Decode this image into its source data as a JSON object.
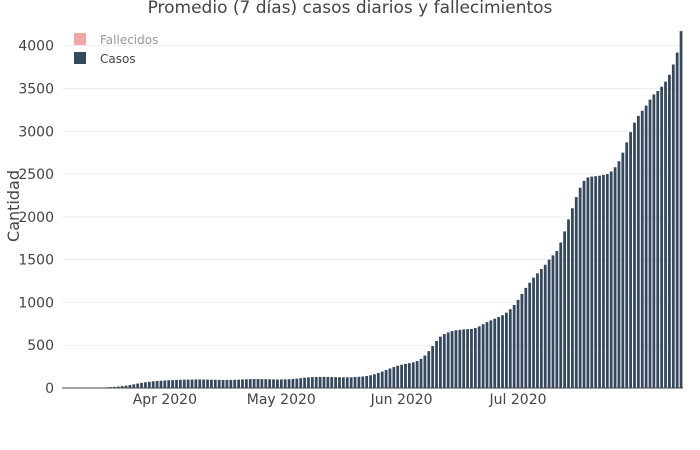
{
  "chart_data": {
    "type": "bar",
    "title": "Promedio (7 días) casos diarios y fallecimientos",
    "xlabel": "",
    "ylabel": "Cantidad",
    "ylim": [
      0,
      4300
    ],
    "yticks": [
      0,
      500,
      1000,
      1500,
      2000,
      2500,
      3000,
      3500,
      4000
    ],
    "grid": true,
    "legend_position": "top-left",
    "x_start": "2020-03-06",
    "xticks": [
      {
        "date": "2020-04-01",
        "label": "Apr 2020"
      },
      {
        "date": "2020-05-01",
        "label": "May 2020"
      },
      {
        "date": "2020-06-01",
        "label": "Jun 2020"
      },
      {
        "date": "2020-07-01",
        "label": "Jul 2020"
      }
    ],
    "series": [
      {
        "name": "Fallecidos",
        "color": "#f2a7a7",
        "legend_text_color": "#999999",
        "values": []
      },
      {
        "name": "Casos",
        "color": "#34495e",
        "legend_text_color": "#444444",
        "values": [
          1,
          1,
          1,
          1,
          2,
          2,
          3,
          3,
          4,
          5,
          6,
          8,
          10,
          13,
          17,
          22,
          28,
          35,
          43,
          52,
          60,
          67,
          73,
          78,
          82,
          85,
          88,
          90,
          92,
          94,
          96,
          97,
          98,
          99,
          100,
          100,
          99,
          98,
          97,
          96,
          95,
          94,
          94,
          95,
          96,
          98,
          100,
          102,
          104,
          105,
          105,
          104,
          103,
          102,
          101,
          100,
          100,
          101,
          103,
          106,
          110,
          115,
          120,
          124,
          127,
          129,
          130,
          130,
          129,
          128,
          127,
          126,
          125,
          125,
          126,
          128,
          131,
          135,
          141,
          149,
          160,
          175,
          192,
          210,
          228,
          245,
          260,
          272,
          282,
          290,
          300,
          315,
          340,
          380,
          430,
          490,
          550,
          600,
          630,
          650,
          665,
          675,
          680,
          685,
          688,
          690,
          700,
          720,
          745,
          770,
          790,
          810,
          830,
          850,
          880,
          920,
          970,
          1030,
          1100,
          1170,
          1230,
          1290,
          1340,
          1390,
          1440,
          1500,
          1550,
          1600,
          1700,
          1830,
          1970,
          2100,
          2230,
          2340,
          2420,
          2460,
          2470,
          2475,
          2480,
          2490,
          2500,
          2530,
          2580,
          2650,
          2750,
          2870,
          2990,
          3100,
          3180,
          3240,
          3300,
          3370,
          3430,
          3470,
          3520,
          3580,
          3660,
          3780,
          3920,
          4170
        ]
      }
    ]
  }
}
